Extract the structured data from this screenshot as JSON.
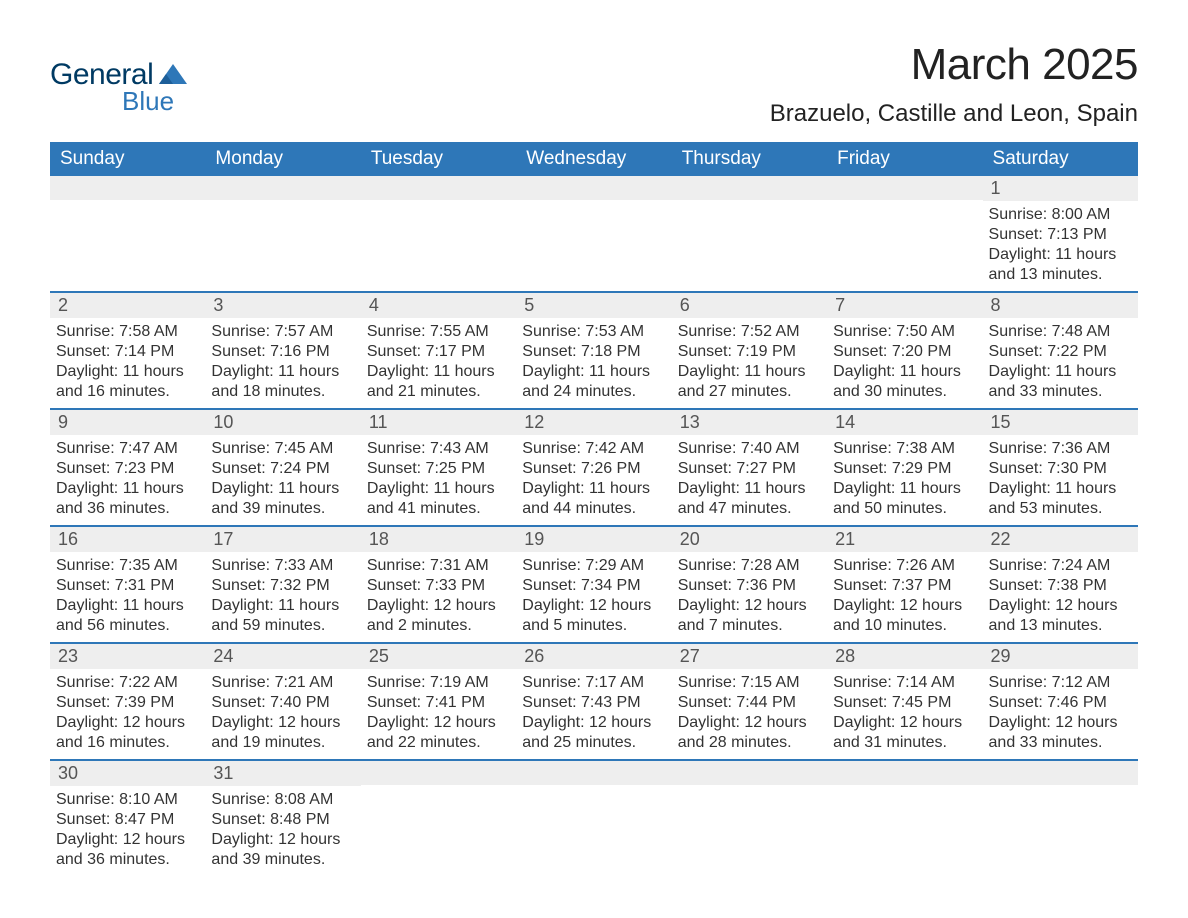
{
  "logo": {
    "word1": "General",
    "word2": "Blue",
    "mark_color": "#2e77b8",
    "text_color_dark": "#003a63"
  },
  "title": {
    "month_year": "March 2025",
    "location": "Brazuelo, Castille and Leon, Spain"
  },
  "styling": {
    "header_bg": "#2e77b8",
    "header_text": "#ffffff",
    "daynum_bg": "#eeeeee",
    "daynum_text": "#555555",
    "body_text": "#333333",
    "row_divider": "#2e77b8",
    "page_bg": "#ffffff",
    "dow_fontsize": 19,
    "title_fontsize": 44,
    "location_fontsize": 24,
    "body_fontsize": 16
  },
  "days_of_week": [
    "Sunday",
    "Monday",
    "Tuesday",
    "Wednesday",
    "Thursday",
    "Friday",
    "Saturday"
  ],
  "labels": {
    "sunrise": "Sunrise:",
    "sunset": "Sunset:",
    "daylight": "Daylight:"
  },
  "weeks": [
    [
      null,
      null,
      null,
      null,
      null,
      null,
      {
        "n": "1",
        "sunrise": "8:00 AM",
        "sunset": "7:13 PM",
        "daylight": "11 hours and 13 minutes."
      }
    ],
    [
      {
        "n": "2",
        "sunrise": "7:58 AM",
        "sunset": "7:14 PM",
        "daylight": "11 hours and 16 minutes."
      },
      {
        "n": "3",
        "sunrise": "7:57 AM",
        "sunset": "7:16 PM",
        "daylight": "11 hours and 18 minutes."
      },
      {
        "n": "4",
        "sunrise": "7:55 AM",
        "sunset": "7:17 PM",
        "daylight": "11 hours and 21 minutes."
      },
      {
        "n": "5",
        "sunrise": "7:53 AM",
        "sunset": "7:18 PM",
        "daylight": "11 hours and 24 minutes."
      },
      {
        "n": "6",
        "sunrise": "7:52 AM",
        "sunset": "7:19 PM",
        "daylight": "11 hours and 27 minutes."
      },
      {
        "n": "7",
        "sunrise": "7:50 AM",
        "sunset": "7:20 PM",
        "daylight": "11 hours and 30 minutes."
      },
      {
        "n": "8",
        "sunrise": "7:48 AM",
        "sunset": "7:22 PM",
        "daylight": "11 hours and 33 minutes."
      }
    ],
    [
      {
        "n": "9",
        "sunrise": "7:47 AM",
        "sunset": "7:23 PM",
        "daylight": "11 hours and 36 minutes."
      },
      {
        "n": "10",
        "sunrise": "7:45 AM",
        "sunset": "7:24 PM",
        "daylight": "11 hours and 39 minutes."
      },
      {
        "n": "11",
        "sunrise": "7:43 AM",
        "sunset": "7:25 PM",
        "daylight": "11 hours and 41 minutes."
      },
      {
        "n": "12",
        "sunrise": "7:42 AM",
        "sunset": "7:26 PM",
        "daylight": "11 hours and 44 minutes."
      },
      {
        "n": "13",
        "sunrise": "7:40 AM",
        "sunset": "7:27 PM",
        "daylight": "11 hours and 47 minutes."
      },
      {
        "n": "14",
        "sunrise": "7:38 AM",
        "sunset": "7:29 PM",
        "daylight": "11 hours and 50 minutes."
      },
      {
        "n": "15",
        "sunrise": "7:36 AM",
        "sunset": "7:30 PM",
        "daylight": "11 hours and 53 minutes."
      }
    ],
    [
      {
        "n": "16",
        "sunrise": "7:35 AM",
        "sunset": "7:31 PM",
        "daylight": "11 hours and 56 minutes."
      },
      {
        "n": "17",
        "sunrise": "7:33 AM",
        "sunset": "7:32 PM",
        "daylight": "11 hours and 59 minutes."
      },
      {
        "n": "18",
        "sunrise": "7:31 AM",
        "sunset": "7:33 PM",
        "daylight": "12 hours and 2 minutes."
      },
      {
        "n": "19",
        "sunrise": "7:29 AM",
        "sunset": "7:34 PM",
        "daylight": "12 hours and 5 minutes."
      },
      {
        "n": "20",
        "sunrise": "7:28 AM",
        "sunset": "7:36 PM",
        "daylight": "12 hours and 7 minutes."
      },
      {
        "n": "21",
        "sunrise": "7:26 AM",
        "sunset": "7:37 PM",
        "daylight": "12 hours and 10 minutes."
      },
      {
        "n": "22",
        "sunrise": "7:24 AM",
        "sunset": "7:38 PM",
        "daylight": "12 hours and 13 minutes."
      }
    ],
    [
      {
        "n": "23",
        "sunrise": "7:22 AM",
        "sunset": "7:39 PM",
        "daylight": "12 hours and 16 minutes."
      },
      {
        "n": "24",
        "sunrise": "7:21 AM",
        "sunset": "7:40 PM",
        "daylight": "12 hours and 19 minutes."
      },
      {
        "n": "25",
        "sunrise": "7:19 AM",
        "sunset": "7:41 PM",
        "daylight": "12 hours and 22 minutes."
      },
      {
        "n": "26",
        "sunrise": "7:17 AM",
        "sunset": "7:43 PM",
        "daylight": "12 hours and 25 minutes."
      },
      {
        "n": "27",
        "sunrise": "7:15 AM",
        "sunset": "7:44 PM",
        "daylight": "12 hours and 28 minutes."
      },
      {
        "n": "28",
        "sunrise": "7:14 AM",
        "sunset": "7:45 PM",
        "daylight": "12 hours and 31 minutes."
      },
      {
        "n": "29",
        "sunrise": "7:12 AM",
        "sunset": "7:46 PM",
        "daylight": "12 hours and 33 minutes."
      }
    ],
    [
      {
        "n": "30",
        "sunrise": "8:10 AM",
        "sunset": "8:47 PM",
        "daylight": "12 hours and 36 minutes."
      },
      {
        "n": "31",
        "sunrise": "8:08 AM",
        "sunset": "8:48 PM",
        "daylight": "12 hours and 39 minutes."
      },
      null,
      null,
      null,
      null,
      null
    ]
  ]
}
